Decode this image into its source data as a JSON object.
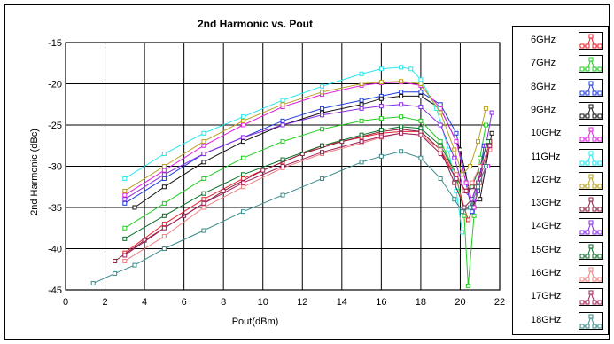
{
  "chart_data": {
    "type": "line",
    "title": "2nd Harmonic vs. Pout",
    "xlabel": "Pout(dBm)",
    "ylabel": "2nd Harmonic (dBc)",
    "xlim": [
      0,
      22
    ],
    "ylim": [
      -45,
      -15
    ],
    "xticks": [
      0,
      2,
      4,
      6,
      8,
      10,
      12,
      14,
      16,
      18,
      20,
      22
    ],
    "yticks": [
      -15,
      -20,
      -25,
      -30,
      -35,
      -40,
      -45
    ],
    "grid": true,
    "legend_position": "right",
    "series": [
      {
        "name": "6GHz",
        "color": "#e8202a",
        "x": [
          3.0,
          5.0,
          7.0,
          9.0,
          11.0,
          13.0,
          15.0,
          16.0,
          17.0,
          18.0,
          19.0,
          19.8,
          20.2,
          20.4,
          20.7,
          21.0
        ],
        "y": [
          -40.5,
          -37.0,
          -34.0,
          -31.5,
          -29.5,
          -27.5,
          -26.5,
          -26.0,
          -25.8,
          -25.8,
          -28.0,
          -31.5,
          -35.0,
          -36.5,
          -35.0,
          -32.0
        ]
      },
      {
        "name": "7GHz",
        "color": "#22cc22",
        "x": [
          3.0,
          5.0,
          7.0,
          9.0,
          11.0,
          13.0,
          15.0,
          16.0,
          17.0,
          18.0,
          19.0,
          19.8,
          20.2,
          20.4,
          20.7,
          21.0,
          21.3
        ],
        "y": [
          -37.5,
          -34.5,
          -31.5,
          -29.0,
          -27.0,
          -25.5,
          -24.5,
          -24.2,
          -24.0,
          -24.5,
          -27.0,
          -31.0,
          -36.0,
          -44.5,
          -36.0,
          -29.0,
          -25.0
        ]
      },
      {
        "name": "8GHz",
        "color": "#1e3cdc",
        "x": [
          3.0,
          5.0,
          7.0,
          9.0,
          11.0,
          13.0,
          15.0,
          16.0,
          17.0,
          18.0,
          19.0,
          19.8,
          20.2,
          20.6,
          20.9,
          21.2
        ],
        "y": [
          -34.5,
          -31.5,
          -28.5,
          -26.5,
          -24.5,
          -23.0,
          -22.0,
          -21.5,
          -21.0,
          -21.0,
          -22.5,
          -26.0,
          -31.0,
          -35.5,
          -33.0,
          -27.5
        ]
      },
      {
        "name": "9GHz",
        "color": "#111111",
        "x": [
          3.5,
          5.0,
          7.0,
          9.0,
          11.0,
          13.0,
          15.0,
          16.0,
          17.0,
          18.0,
          19.0,
          20.0,
          20.6,
          21.0,
          21.3,
          21.6
        ],
        "y": [
          -35.0,
          -32.5,
          -29.5,
          -27.0,
          -25.0,
          -23.5,
          -22.5,
          -21.8,
          -21.5,
          -21.5,
          -23.0,
          -28.0,
          -34.5,
          -34.0,
          -30.0,
          -26.0
        ]
      },
      {
        "name": "10GHz",
        "color": "#e020e0",
        "x": [
          3.0,
          5.0,
          7.0,
          9.0,
          11.0,
          13.0,
          15.0,
          16.0,
          17.0,
          18.0,
          19.0,
          19.8,
          20.3,
          20.7,
          21.0,
          21.4
        ],
        "y": [
          -33.5,
          -30.5,
          -27.5,
          -25.0,
          -22.8,
          -21.3,
          -20.2,
          -19.9,
          -19.8,
          -20.2,
          -23.0,
          -27.0,
          -32.0,
          -35.0,
          -31.5,
          -30.0
        ]
      },
      {
        "name": "11GHz",
        "color": "#22e8f0",
        "x": [
          3.0,
          5.0,
          7.0,
          9.0,
          11.0,
          13.0,
          15.0,
          16.0,
          17.0,
          17.5,
          18.0,
          18.8,
          19.4,
          19.8,
          20.1
        ],
        "y": [
          -31.5,
          -28.5,
          -26.0,
          -24.0,
          -22.0,
          -20.3,
          -18.8,
          -18.2,
          -18.0,
          -18.2,
          -19.5,
          -23.0,
          -28.0,
          -33.0,
          -38.0
        ]
      },
      {
        "name": "12GHz",
        "color": "#b8a020",
        "x": [
          3.0,
          5.0,
          7.0,
          9.0,
          11.0,
          13.0,
          15.0,
          16.0,
          17.0,
          18.0,
          19.0,
          19.7,
          20.1,
          20.5,
          20.9,
          21.3
        ],
        "y": [
          -33.0,
          -30.0,
          -27.0,
          -24.5,
          -22.5,
          -21.0,
          -20.0,
          -19.8,
          -19.7,
          -20.0,
          -23.5,
          -28.0,
          -31.0,
          -30.0,
          -27.0,
          -23.0
        ]
      },
      {
        "name": "13GHz",
        "color": "#8a2040",
        "x": [
          2.5,
          4.0,
          6.0,
          8.0,
          10.0,
          12.0,
          14.0,
          16.0,
          17.0,
          18.0,
          19.0,
          19.7,
          20.2,
          20.6,
          21.0,
          21.5
        ],
        "y": [
          -41.5,
          -39.0,
          -36.0,
          -33.0,
          -30.5,
          -28.5,
          -27.0,
          -25.8,
          -25.5,
          -25.8,
          -28.0,
          -32.0,
          -35.0,
          -34.0,
          -31.0,
          -27.0
        ]
      },
      {
        "name": "14GHz",
        "color": "#8a2be2",
        "x": [
          3.0,
          5.0,
          7.0,
          9.0,
          11.0,
          13.0,
          15.0,
          16.0,
          17.0,
          18.0,
          19.0,
          19.7,
          20.2,
          20.6,
          20.9,
          21.3,
          21.6
        ],
        "y": [
          -34.0,
          -31.0,
          -28.5,
          -26.5,
          -25.0,
          -23.8,
          -23.0,
          -22.7,
          -22.5,
          -22.8,
          -25.0,
          -29.0,
          -33.0,
          -34.0,
          -32.0,
          -27.5,
          -23.5
        ]
      },
      {
        "name": "15GHz",
        "color": "#0a6e2a",
        "x": [
          3.0,
          5.0,
          7.0,
          9.0,
          11.0,
          13.0,
          15.0,
          16.0,
          17.0,
          18.0,
          19.0,
          19.8,
          20.2,
          20.6,
          21.0,
          21.4
        ],
        "y": [
          -38.8,
          -36.0,
          -33.3,
          -31.0,
          -29.2,
          -27.5,
          -26.2,
          -25.6,
          -25.2,
          -25.4,
          -27.5,
          -31.0,
          -33.0,
          -32.5,
          -30.0,
          -27.0
        ]
      },
      {
        "name": "16GHz",
        "color": "#f08080",
        "x": [
          3.0,
          5.0,
          7.0,
          9.0,
          11.0,
          13.0,
          15.0,
          16.0,
          17.0,
          18.0,
          19.0,
          19.8,
          20.2,
          20.6,
          21.0,
          21.5
        ],
        "y": [
          -41.5,
          -38.5,
          -35.0,
          -32.5,
          -30.2,
          -28.5,
          -27.2,
          -26.5,
          -26.0,
          -26.2,
          -28.0,
          -31.0,
          -33.0,
          -32.0,
          -30.0,
          -28.0
        ]
      },
      {
        "name": "17GHz",
        "color": "#a0205a",
        "x": [
          3.0,
          5.0,
          7.0,
          9.0,
          11.0,
          13.0,
          15.0,
          16.0,
          17.0,
          18.0,
          19.0,
          19.8,
          20.3,
          20.8,
          21.2,
          21.5
        ],
        "y": [
          -40.8,
          -37.5,
          -34.5,
          -32.0,
          -30.0,
          -28.3,
          -27.0,
          -26.4,
          -26.0,
          -26.2,
          -28.5,
          -31.5,
          -33.0,
          -32.5,
          -30.0,
          -27.5
        ]
      },
      {
        "name": "18GHz",
        "color": "#3a8a8a",
        "x": [
          1.4,
          2.5,
          3.5,
          5.0,
          7.0,
          9.0,
          11.0,
          13.0,
          15.0,
          16.0,
          17.0,
          18.0,
          19.0,
          19.7,
          20.1,
          20.5,
          20.9,
          21.3
        ],
        "y": [
          -44.2,
          -43.0,
          -42.0,
          -40.0,
          -37.8,
          -35.5,
          -33.5,
          -31.5,
          -29.5,
          -28.8,
          -28.2,
          -29.0,
          -31.5,
          -34.0,
          -35.5,
          -35.0,
          -32.5,
          -30.0
        ]
      }
    ]
  }
}
